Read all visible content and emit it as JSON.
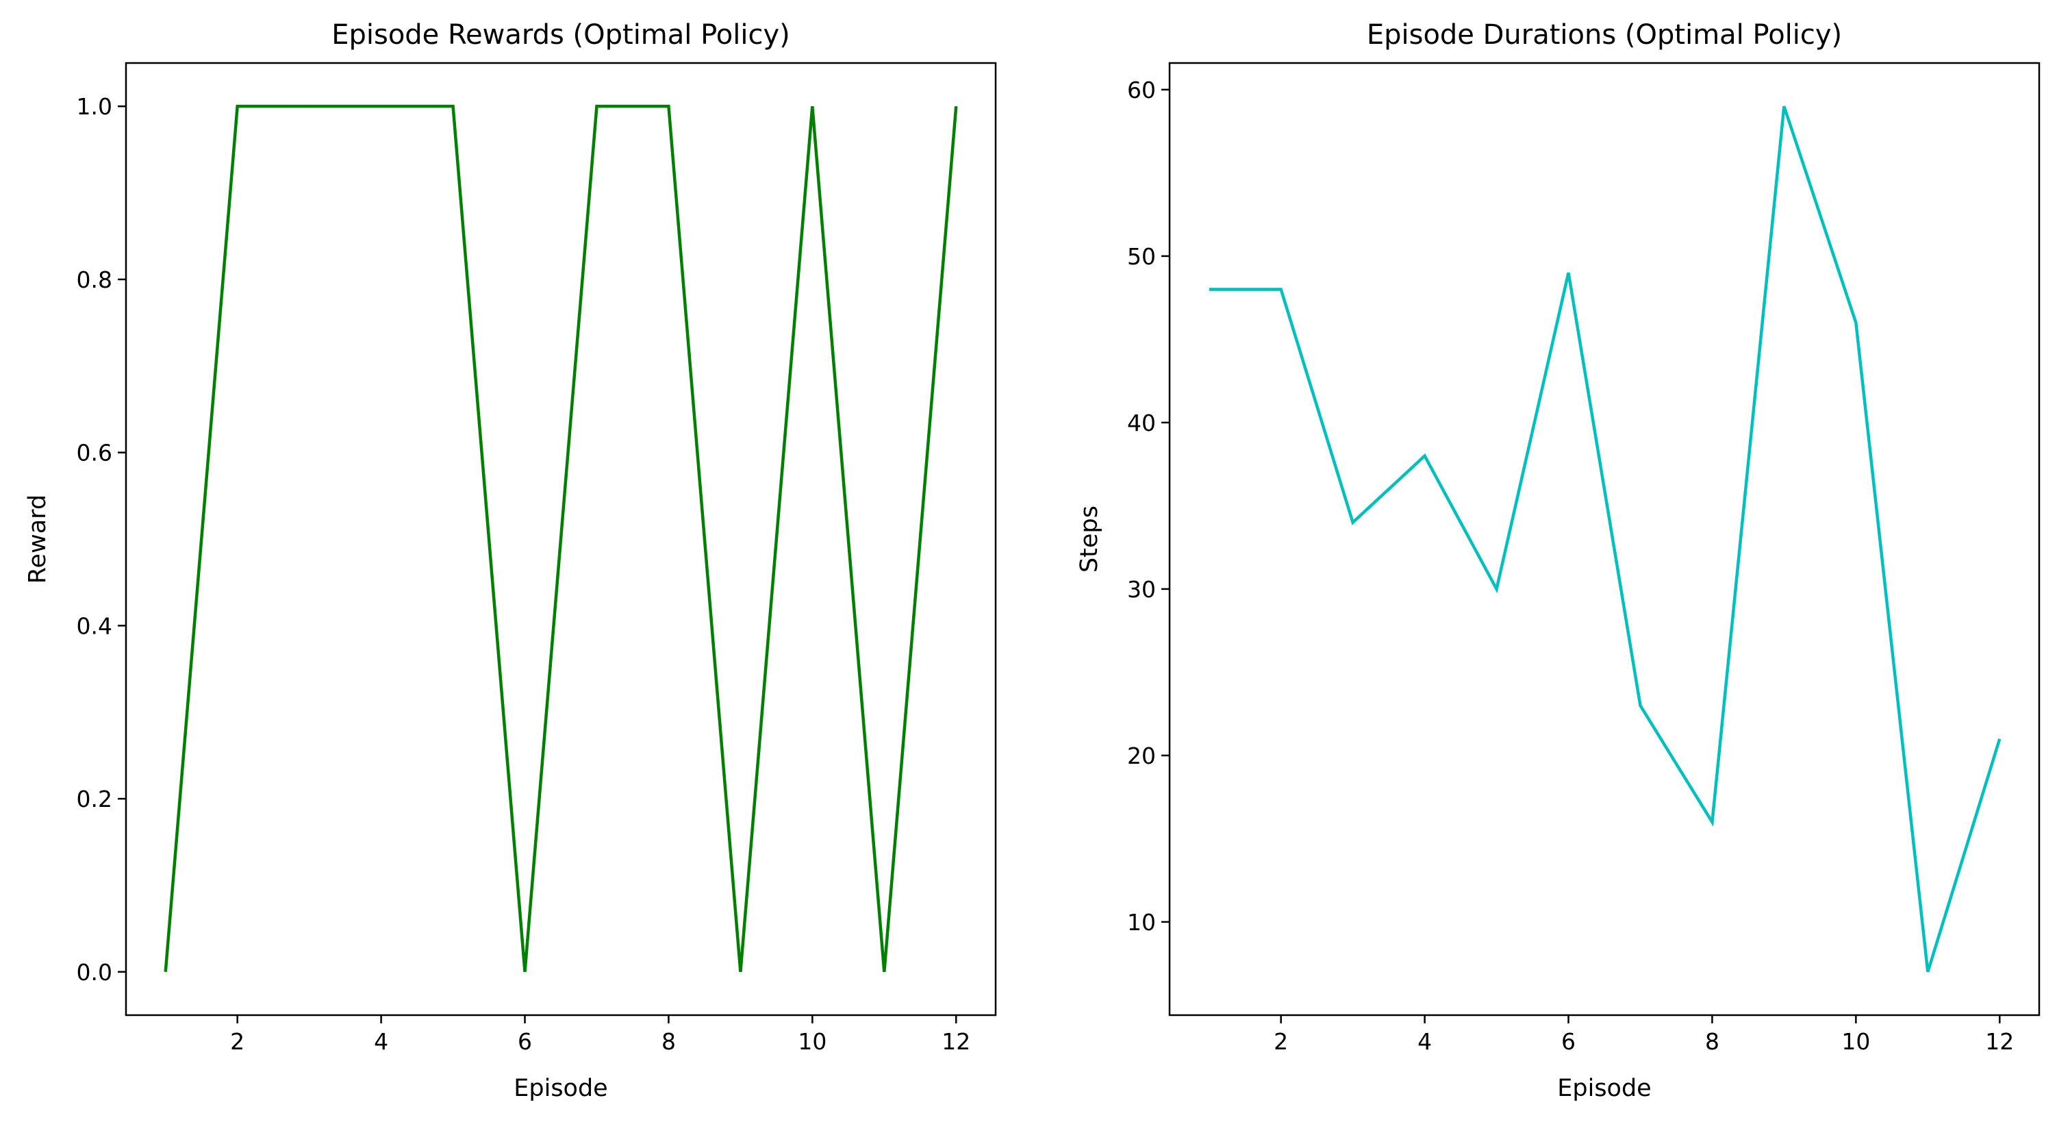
{
  "chart_data": [
    {
      "type": "line",
      "title": "Episode Rewards (Optimal Policy)",
      "xlabel": "Episode",
      "ylabel": "Reward",
      "x": [
        1,
        2,
        3,
        4,
        5,
        6,
        7,
        8,
        9,
        10,
        11,
        12
      ],
      "series": [
        {
          "values": [
            0,
            1,
            1,
            1,
            1,
            0,
            1,
            1,
            0,
            1,
            0,
            1
          ],
          "color": "#008000"
        }
      ],
      "xlim": [
        0.45,
        12.55
      ],
      "ylim": [
        -0.05,
        1.05
      ],
      "xticks": [
        2,
        4,
        6,
        8,
        10,
        12
      ],
      "xtick_labels": [
        "2",
        "4",
        "6",
        "8",
        "10",
        "12"
      ],
      "yticks": [
        0.0,
        0.2,
        0.4,
        0.6,
        0.8,
        1.0
      ],
      "ytick_labels": [
        "0.0",
        "0.2",
        "0.4",
        "0.6",
        "0.8",
        "1.0"
      ],
      "grid": false
    },
    {
      "type": "line",
      "title": "Episode Durations (Optimal Policy)",
      "xlabel": "Episode",
      "ylabel": "Steps",
      "x": [
        1,
        2,
        3,
        4,
        5,
        6,
        7,
        8,
        9,
        10,
        11,
        12
      ],
      "series": [
        {
          "values": [
            48,
            48,
            34,
            38,
            30,
            49,
            23,
            16,
            59,
            46,
            7,
            21
          ],
          "color": "#00bfbf"
        }
      ],
      "xlim": [
        0.45,
        12.55
      ],
      "ylim": [
        4.4,
        61.6
      ],
      "xticks": [
        2,
        4,
        6,
        8,
        10,
        12
      ],
      "xtick_labels": [
        "2",
        "4",
        "6",
        "8",
        "10",
        "12"
      ],
      "yticks": [
        10,
        20,
        30,
        40,
        50,
        60
      ],
      "ytick_labels": [
        "10",
        "20",
        "30",
        "40",
        "50",
        "60"
      ],
      "grid": false
    }
  ]
}
